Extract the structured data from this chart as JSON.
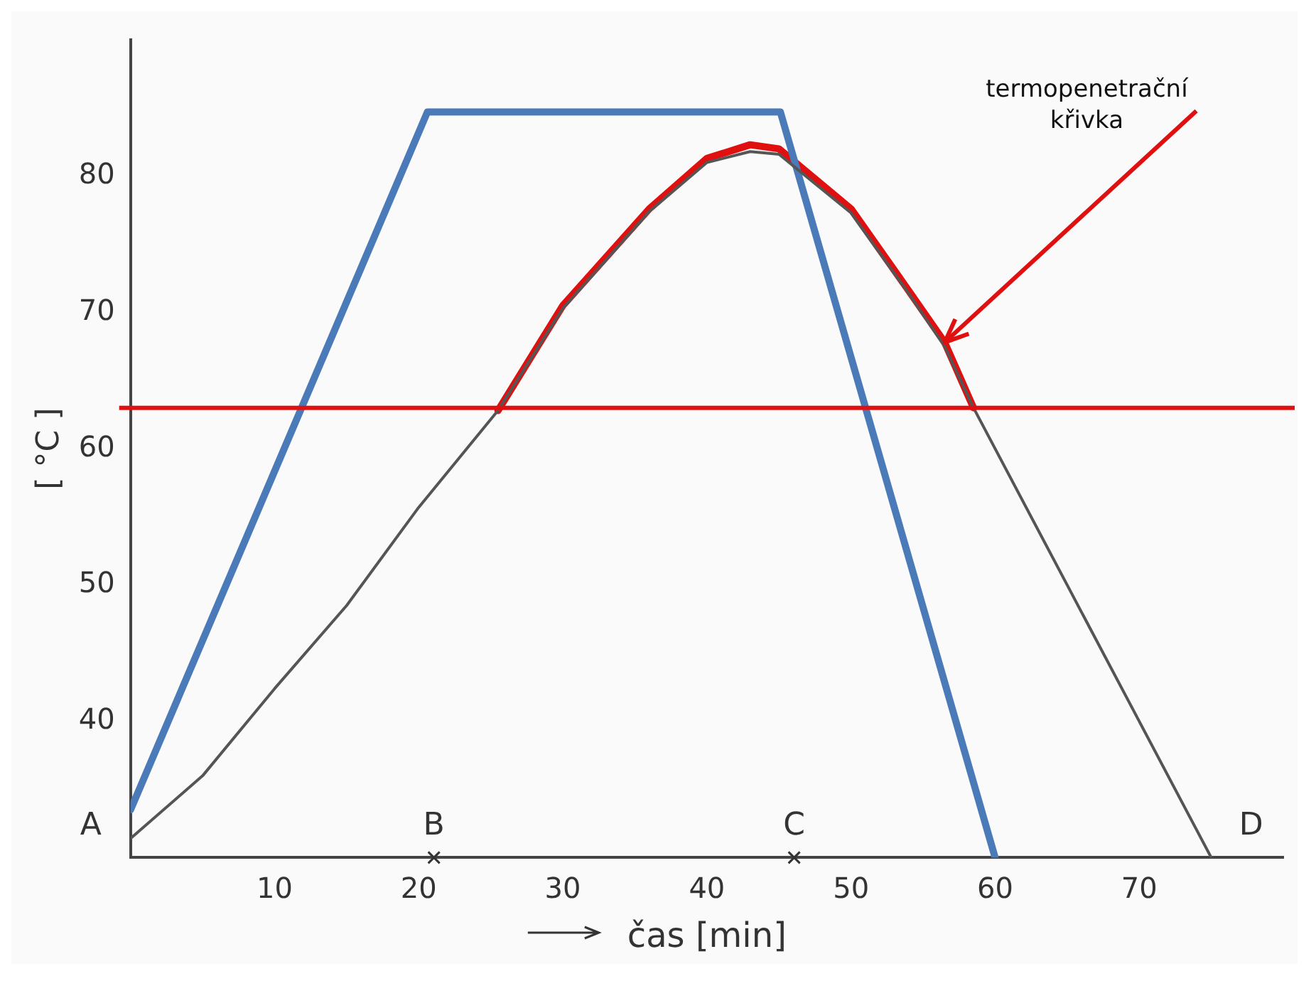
{
  "chart_data": {
    "type": "line",
    "xlabel": "čas [min]",
    "ylabel": "[ °C ]",
    "xlim": [
      0,
      80
    ],
    "ylim": [
      30,
      90
    ],
    "xticks": [
      10,
      20,
      30,
      40,
      50,
      60,
      70
    ],
    "yticks": [
      40,
      50,
      60,
      70,
      80
    ],
    "grid": false,
    "legend": false,
    "marker": "none",
    "line_style": "solid",
    "series": [
      {
        "color": "#555555",
        "x": [
          0,
          5,
          10,
          15,
          20,
          25.5,
          30,
          36,
          40,
          43,
          45,
          50,
          54,
          56.5,
          58.5,
          65,
          70,
          75
        ],
        "values": [
          31.4,
          36,
          42.4,
          48.5,
          55.7,
          62.8,
          70.3,
          77.4,
          81,
          81.8,
          81.6,
          77.3,
          71.4,
          67.5,
          63,
          50,
          40,
          30
        ]
      },
      {
        "color": "#4a7ab8",
        "x": [
          0,
          20.6,
          45.1,
          60
        ],
        "values": [
          33.5,
          84.7,
          84.7,
          30
        ]
      },
      {
        "color": "#e01010",
        "x": [
          25.5,
          30,
          36,
          40,
          43,
          45,
          50,
          54,
          56.5,
          58.5
        ],
        "values": [
          62.8,
          70.5,
          77.6,
          81.3,
          82.3,
          82,
          77.6,
          71.6,
          67.8,
          63
        ]
      }
    ],
    "ref_lines": [
      {
        "axis": "y",
        "value": 63,
        "color": "#e01010"
      }
    ],
    "annotations": [
      {
        "text": "termopenetrační křivka",
        "x": 56.5,
        "y": 67.8
      },
      {
        "text": "A",
        "x": 0,
        "y": 33.5
      },
      "B",
      "C",
      {
        "text": "D",
        "x": 75,
        "y": 30
      }
    ]
  }
}
